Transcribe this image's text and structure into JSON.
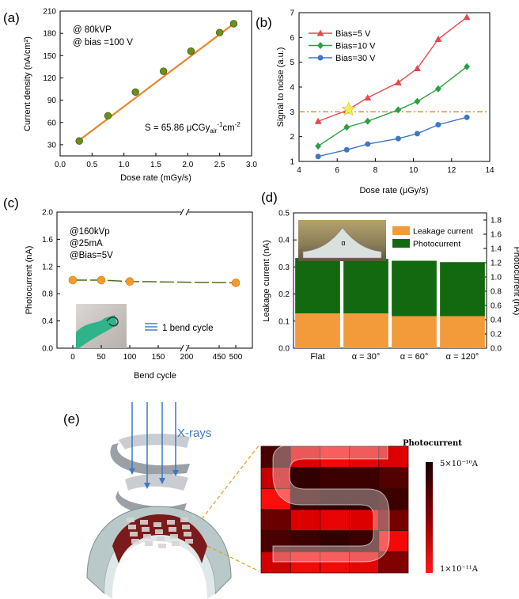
{
  "chart_data": [
    {
      "panel": "(a)",
      "type": "scatter",
      "xlabel": "Dose rate (mGy/s)",
      "ylabel": "Current density (nA/cm²)",
      "xlim": [
        0.0,
        3.0
      ],
      "ylim": [
        15,
        210
      ],
      "xticks": [
        "0.0",
        "0.5",
        "1.0",
        "1.5",
        "2.0",
        "2.5",
        "3.0"
      ],
      "yticks": [
        "30",
        "60",
        "90",
        "120",
        "150",
        "180",
        "210"
      ],
      "annotations": [
        "@ 80kVP",
        "@ bias =100 V"
      ],
      "sensitivity_prefix": "S = 65.86 μCGy",
      "sensitivity_sub": "air",
      "sensitivity_sup1": "-1",
      "sensitivity_mid": "cm",
      "sensitivity_sup2": "-2",
      "series": [
        {
          "x": [
            0.3,
            0.75,
            1.18,
            1.62,
            2.05,
            2.5,
            2.72
          ],
          "y": [
            35,
            69,
            101,
            129,
            156,
            181,
            193
          ]
        }
      ],
      "fit": {
        "x": [
          0.3,
          2.72
        ],
        "y": [
          36,
          193
        ]
      },
      "colors": {
        "point": "#6f8f1c",
        "fit": "#e8862a"
      }
    },
    {
      "panel": "(b)",
      "type": "line",
      "xlabel": "Dose rate (μGy/s)",
      "ylabel": "Signal to noise (a.u.)",
      "xlim": [
        4,
        14
      ],
      "ylim": [
        1,
        7
      ],
      "xticks": [
        "4",
        "6",
        "8",
        "10",
        "12",
        "14"
      ],
      "yticks": [
        "1",
        "2",
        "3",
        "4",
        "5",
        "6",
        "7"
      ],
      "threshold": 3.0,
      "star": {
        "x": 6.6,
        "y": 3.1
      },
      "legend": "top-left",
      "series": [
        {
          "name": "Bias=5 V",
          "color": "#e8474d",
          "marker": "triangle",
          "x": [
            5.0,
            6.5,
            7.6,
            9.2,
            10.2,
            11.3,
            12.8
          ],
          "y": [
            2.62,
            3.05,
            3.57,
            4.18,
            4.75,
            5.93,
            6.82
          ]
        },
        {
          "name": "Bias=10 V",
          "color": "#2aa046",
          "marker": "diamond",
          "x": [
            5.0,
            6.5,
            7.6,
            9.2,
            10.2,
            11.3,
            12.8
          ],
          "y": [
            1.62,
            2.38,
            2.62,
            3.08,
            3.42,
            3.93,
            4.82
          ]
        },
        {
          "name": "Bias=30 V",
          "color": "#3b78c6",
          "marker": "circle",
          "x": [
            5.0,
            6.5,
            7.6,
            9.2,
            10.2,
            11.3,
            12.8
          ],
          "y": [
            1.2,
            1.47,
            1.7,
            1.92,
            2.12,
            2.48,
            2.78
          ]
        }
      ]
    },
    {
      "panel": "(c)",
      "type": "line",
      "xlabel": "Bend cycle",
      "ylabel": "Photocurrent (nA)",
      "ylim": [
        0.0,
        2.0
      ],
      "xticks": [
        "0",
        "50",
        "100",
        "150",
        "200",
        "450",
        "500"
      ],
      "yticks": [
        "0.0",
        "0.4",
        "0.8",
        "1.2",
        "1.6",
        "2.0"
      ],
      "annotations": [
        "@160kVp",
        "@25mA",
        "@Bias=5V"
      ],
      "inset_label": "1 bend cycle",
      "series": [
        {
          "x": [
            0,
            50,
            100,
            500
          ],
          "y": [
            1.0,
            1.0,
            0.98,
            0.96
          ]
        }
      ],
      "colors": {
        "point": "#f39a2d",
        "line": "#4e6d1c"
      }
    },
    {
      "panel": "(d)",
      "type": "bar",
      "ylabel": "Leakage current (nA)",
      "y2label": "Photocurrent (nA)",
      "ylim": [
        0.0,
        0.5
      ],
      "y2lim": [
        0.0,
        1.9
      ],
      "yticks": [
        "0.0",
        "0.1",
        "0.2",
        "0.3",
        "0.4",
        "0.5"
      ],
      "y2ticks": [
        "0.0",
        "0.2",
        "0.4",
        "0.6",
        "0.8",
        "1.0",
        "1.2",
        "1.4",
        "1.6",
        "1.8"
      ],
      "categories": [
        "Flat",
        "α = 30°",
        "α = 60°",
        "α = 120°"
      ],
      "inset_label": "α",
      "series": [
        {
          "name": "Leakage current",
          "color": "#f39a3a",
          "values": [
            0.128,
            0.128,
            0.118,
            0.118
          ]
        },
        {
          "name": "Photocurrent",
          "color": "#13690f",
          "values": [
            0.333,
            0.33,
            0.323,
            0.318
          ]
        }
      ]
    },
    {
      "panel": "(e)",
      "type": "heatmap",
      "xray_label": "X-rays",
      "colorbar_title": "Photocurrent",
      "colorbar_max": "5×10⁻¹⁰A",
      "colorbar_min": "1×10⁻¹¹A",
      "grid_rows": 6,
      "grid_cols": 5,
      "values": [
        [
          0.2,
          0.85,
          0.95,
          0.9,
          0.85
        ],
        [
          0.75,
          0.1,
          0.15,
          0.15,
          0.25
        ],
        [
          1.0,
          0.15,
          0.1,
          0.1,
          0.15
        ],
        [
          0.35,
          0.85,
          0.9,
          0.85,
          0.4
        ],
        [
          0.2,
          0.15,
          0.1,
          0.15,
          0.95
        ],
        [
          0.8,
          0.95,
          0.95,
          0.9,
          0.45
        ]
      ]
    }
  ]
}
